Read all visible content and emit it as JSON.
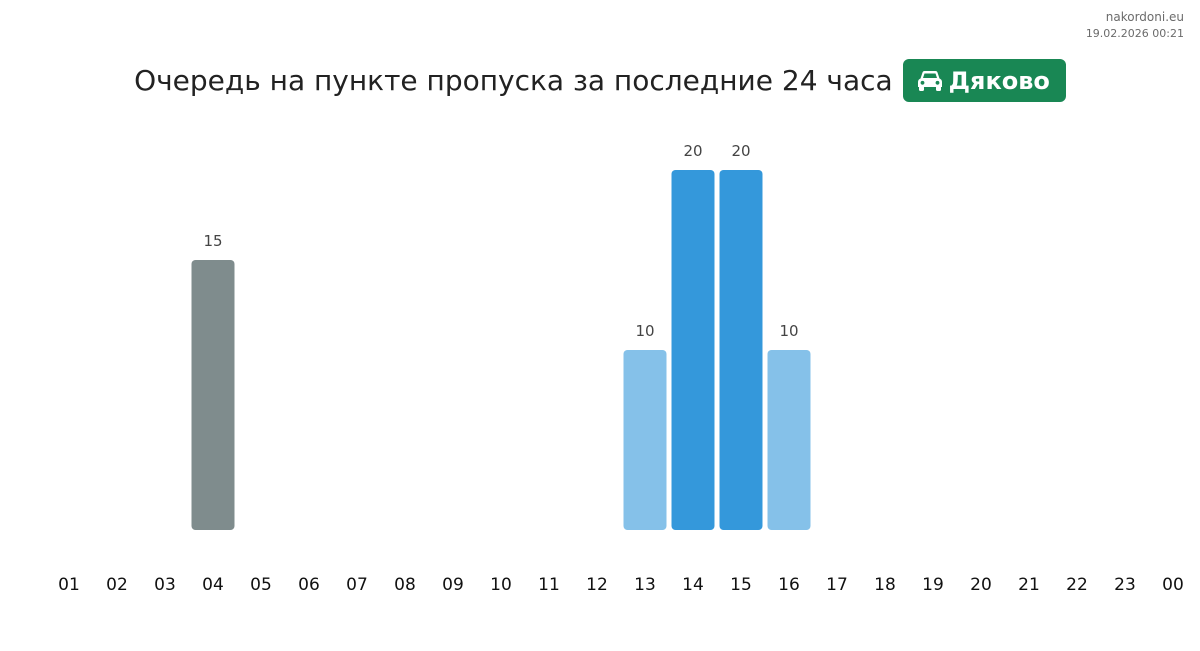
{
  "site": {
    "name": "nakordoni.eu",
    "timestamp": "19.02.2026 00:21"
  },
  "header": {
    "title": "Очередь на пункте пропуска за последние 24 часа",
    "badge_icon": "car-icon",
    "badge_label": "Дяково",
    "badge_color": "#198754"
  },
  "colors": {
    "past": "#7f8c8d",
    "high": "#3498db",
    "medium": "#85c1e9"
  },
  "chart_data": {
    "type": "bar",
    "title": "",
    "xlabel": "",
    "ylabel": "",
    "ylim": [
      0,
      20
    ],
    "grid": false,
    "categories": [
      "01",
      "02",
      "03",
      "04",
      "05",
      "06",
      "07",
      "08",
      "09",
      "10",
      "11",
      "12",
      "13",
      "14",
      "15",
      "16",
      "17",
      "18",
      "19",
      "20",
      "21",
      "22",
      "23",
      "00"
    ],
    "values": [
      null,
      null,
      null,
      15,
      null,
      null,
      null,
      null,
      null,
      null,
      null,
      null,
      10,
      20,
      20,
      10,
      null,
      null,
      null,
      null,
      null,
      null,
      null,
      null
    ],
    "bar_colors": [
      null,
      null,
      null,
      "#7f8c8d",
      null,
      null,
      null,
      null,
      null,
      null,
      null,
      null,
      "#85c1e9",
      "#3498db",
      "#3498db",
      "#85c1e9",
      null,
      null,
      null,
      null,
      null,
      null,
      null,
      null
    ]
  }
}
